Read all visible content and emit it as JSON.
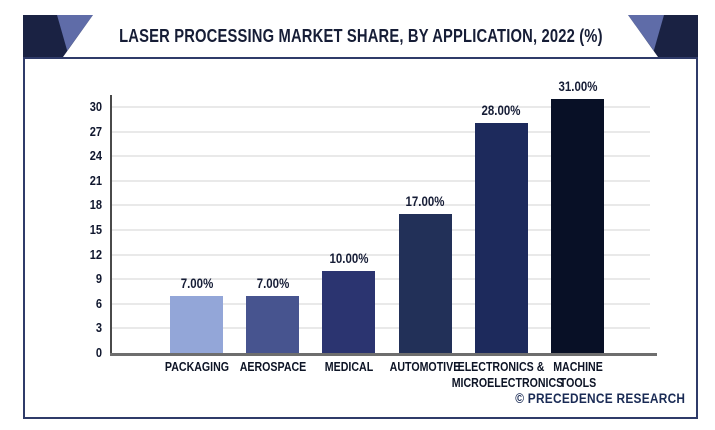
{
  "header": {
    "title": "LASER PROCESSING MARKET SHARE, BY APPLICATION, 2022 (%)"
  },
  "footer": {
    "credit": "© PRECEDENCE RESEARCH"
  },
  "colors": {
    "banner_navy": "#1a2243",
    "ribbon_accent": "#5f6ca8",
    "frame_border": "#2f3b69",
    "axis_line": "#4a4a4a",
    "baseline": "#6e6e6e",
    "gridline": "#e9e9e9",
    "label_text": "#10172e",
    "credit_text": "#1a2b55"
  },
  "chart_data": {
    "type": "bar",
    "title": "LASER PROCESSING MARKET SHARE, BY APPLICATION, 2022 (%)",
    "categories": [
      "PACKAGING",
      "AEROSPACE",
      "MEDICAL",
      "AUTOMOTIVE",
      "ELECTRONICS &\nMICROELECTRONICS",
      "MACHINE\nTOOLS"
    ],
    "values": [
      7,
      7,
      10,
      17,
      28,
      31
    ],
    "value_labels": [
      "7.00%",
      "7.00%",
      "10.00%",
      "17.00%",
      "28.00%",
      "31.00%"
    ],
    "bar_colors": [
      "#93a6d8",
      "#47548f",
      "#2b3470",
      "#223058",
      "#1d2a5c",
      "#081026"
    ],
    "xlabel": "",
    "ylabel": "",
    "ylim": [
      0,
      30
    ],
    "yticks": [
      0,
      3,
      6,
      9,
      12,
      15,
      18,
      21,
      24,
      27,
      30
    ],
    "grid": "horizontal-only",
    "legend": "none"
  }
}
